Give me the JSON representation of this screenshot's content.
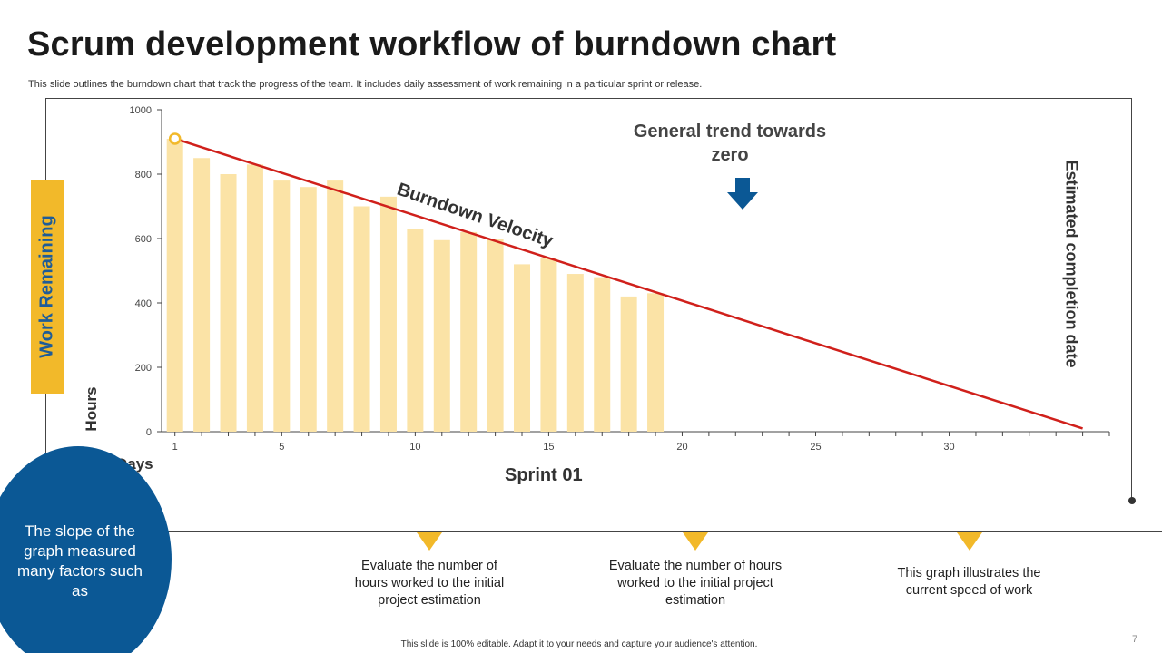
{
  "slide": {
    "title": "Scrum development workflow of burndown chart",
    "subtitle": "This slide outlines the burndown chart that track the progress of the team. It includes daily assessment of work remaining in a particular sprint or release.",
    "footer": "This slide is 100% editable. Adapt it to your needs and capture your audience's attention.",
    "page_number": "7"
  },
  "labels": {
    "work_remaining": "Work Remaining",
    "hours": "Hours",
    "days": "Days",
    "sprint": "Sprint 01",
    "trend": "General trend towards zero",
    "velocity": "Burndown Velocity",
    "estimated": "Estimated completion date"
  },
  "callout": {
    "text": "The slope of the graph measured many factors such as"
  },
  "notes": [
    "Evaluate the number of hours worked to the initial project estimation",
    "Evaluate the number of hours worked to the initial project estimation",
    "This graph illustrates the current speed of work"
  ],
  "colors": {
    "bar": "#fbe3a6",
    "trend_line": "#d0201b",
    "accent_yellow": "#f2b92a",
    "accent_blue": "#0b5895",
    "arrow": "#0b5895"
  },
  "chart_data": {
    "type": "bar",
    "x": [
      1,
      2,
      3,
      4,
      5,
      6,
      7,
      8,
      9,
      10,
      11,
      12,
      13,
      14,
      15,
      16,
      17,
      18,
      19
    ],
    "values": [
      910,
      850,
      800,
      830,
      780,
      760,
      780,
      700,
      730,
      630,
      595,
      620,
      600,
      520,
      540,
      490,
      480,
      420,
      430
    ],
    "xlim": [
      0.5,
      36
    ],
    "ylim": [
      0,
      1000
    ],
    "x_ticks": [
      1,
      5,
      10,
      15,
      20,
      25,
      30
    ],
    "y_ticks": [
      0,
      200,
      400,
      600,
      800,
      1000
    ],
    "trend_line": {
      "start": [
        1,
        910
      ],
      "end": [
        35,
        10
      ]
    },
    "grid": false
  }
}
